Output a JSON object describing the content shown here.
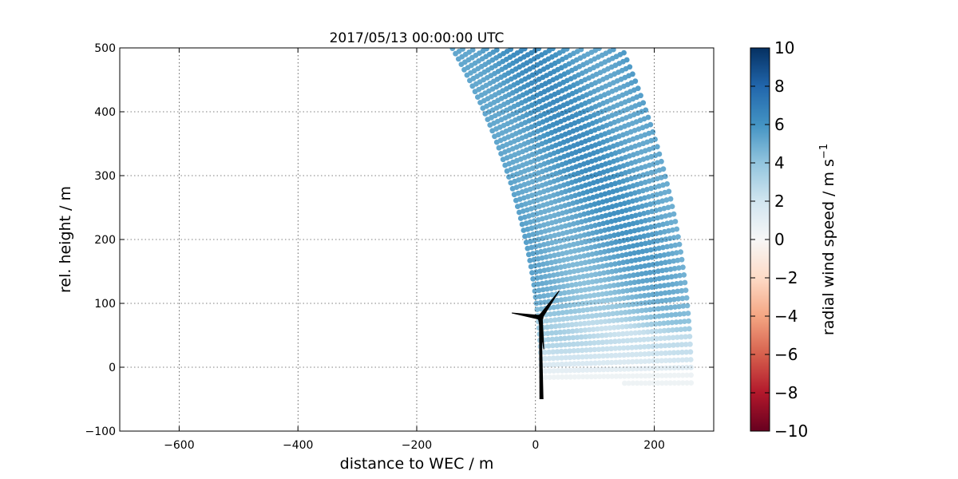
{
  "chart_data": {
    "type": "scatter",
    "title": "2017/05/13 00:00:00 UTC",
    "xlabel": "distance to WEC / m",
    "ylabel": "rel. height / m",
    "xlim": [
      -700,
      300
    ],
    "ylim": [
      -100,
      500
    ],
    "xticks": [
      -600,
      -400,
      -200,
      0,
      200
    ],
    "yticks": [
      -100,
      0,
      100,
      200,
      300,
      400,
      500
    ],
    "grid": true,
    "colorbar": {
      "label": "radial wind speed / m s",
      "label_exponent": "−1",
      "range": [
        -10,
        10
      ],
      "ticks": [
        10,
        8,
        6,
        4,
        2,
        0,
        -2,
        -4,
        -6,
        -8,
        -10
      ],
      "tick_labels": [
        "10",
        "8",
        "6",
        "4",
        "2",
        "0",
        "−2",
        "−4",
        "−6",
        "−8",
        "−10"
      ],
      "colormap": "RdBu",
      "colors": [
        "#67001f",
        "#b2182b",
        "#d6604d",
        "#f4a582",
        "#fddbc7",
        "#f7f7f7",
        "#d1e5f0",
        "#92c5de",
        "#4393c3",
        "#2166ac",
        "#053061"
      ]
    },
    "scan": {
      "description_values": "RHI scan of lidar: range gates vs elevation, colored by radial wind speed",
      "lidar_position": [
        -1000,
        -30
      ],
      "range_min": 1010,
      "range_max": 1265,
      "range_step": 7,
      "elevation_step_deg": 0.55,
      "upper_bound": 500,
      "lower_bound": -25,
      "ray_max": 1300
    },
    "turbine": {
      "hub": [
        8,
        78
      ],
      "tower_base": [
        10,
        -50
      ],
      "blade_tips": [
        [
          40,
          120
        ],
        [
          -40,
          85
        ],
        [
          14,
          28
        ]
      ]
    }
  }
}
